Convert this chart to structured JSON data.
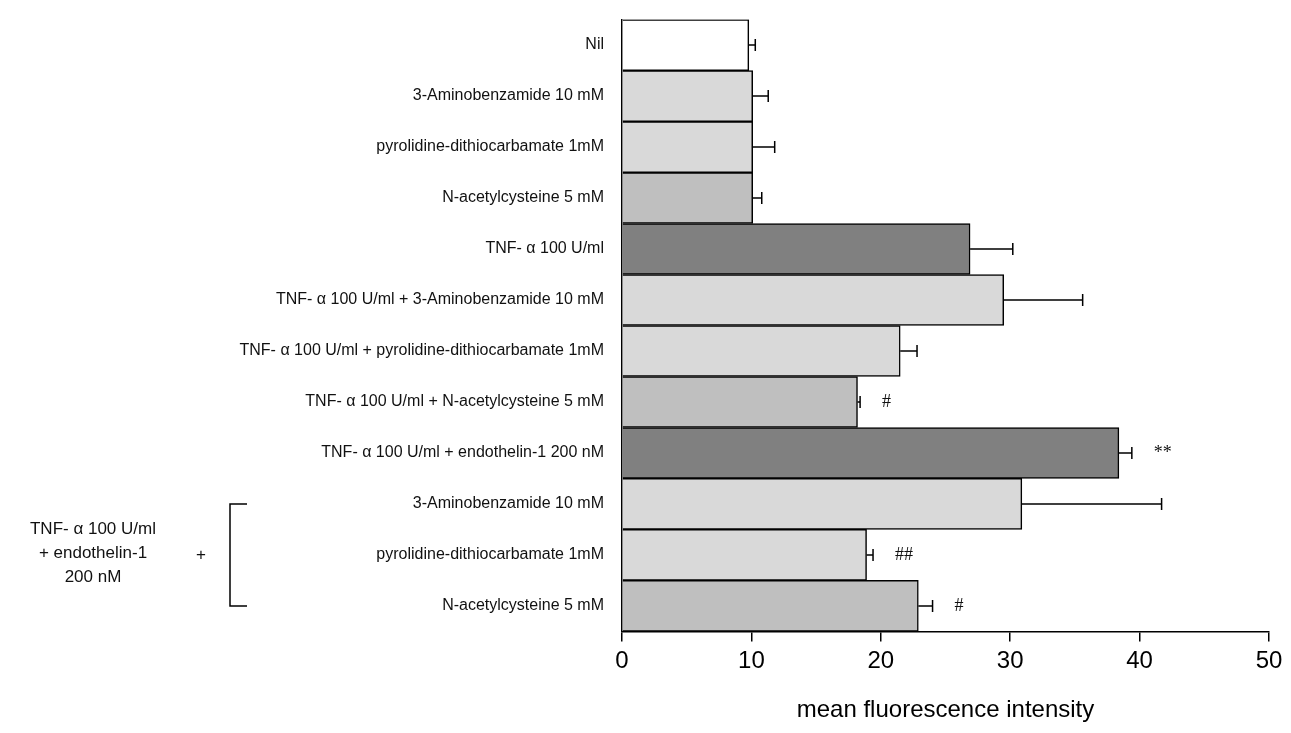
{
  "chart_data": {
    "type": "bar",
    "orientation": "horizontal",
    "xlabel": "mean fluorescence intensity",
    "categories": [
      "Nil",
      "3-Aminobenzamide 10 mM",
      "pyrolidine-dithiocarbamate 1mM",
      "N-acetylcysteine 5 mM",
      "TNF- α 100 U/ml",
      "TNF- α 100 U/ml + 3-Aminobenzamide 10 mM",
      "TNF- α 100 U/ml + pyrolidine-dithiocarbamate 1mM",
      "TNF- α 100 U/ml + N-acetylcysteine 5 mM",
      "TNF- α 100 U/ml + endothelin-1 200 nM",
      "3-Aminobenzamide 10 mM",
      "pyrolidine-dithiocarbamate 1mM",
      "N-acetylcysteine 5 mM"
    ],
    "values": [
      9.8,
      10.1,
      10.1,
      10.1,
      26.9,
      29.5,
      21.5,
      18.2,
      38.4,
      30.9,
      18.9,
      22.9
    ],
    "errors": [
      0.5,
      1.2,
      1.7,
      0.7,
      3.3,
      6.1,
      1.3,
      0.2,
      1.0,
      10.8,
      0.5,
      1.1
    ],
    "colors": [
      "#ffffff",
      "#d9d9d9",
      "#d9d9d9",
      "#bfbfbf",
      "#808080",
      "#d9d9d9",
      "#d9d9d9",
      "#bfbfbf",
      "#808080",
      "#d9d9d9",
      "#d9d9d9",
      "#bfbfbf"
    ],
    "xlim": [
      0,
      50
    ],
    "xticks": [
      0,
      10,
      20,
      30,
      40,
      50
    ],
    "grid": false,
    "legend": false,
    "value_labels": [
      null,
      null,
      null,
      null,
      null,
      null,
      null,
      "#",
      "**",
      null,
      "##",
      "#"
    ],
    "annotations": [
      "TNF- α 100 U/ml\n+ endothelin-1\n200 nM",
      "+"
    ]
  }
}
